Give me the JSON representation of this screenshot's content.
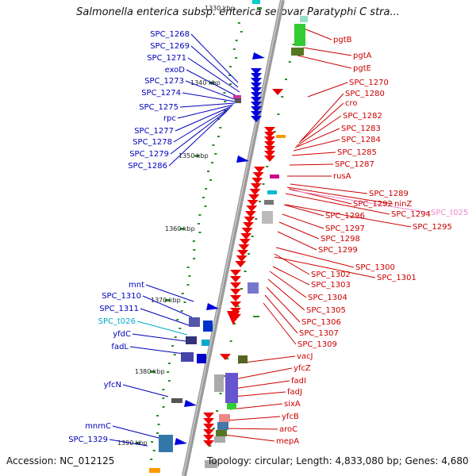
{
  "title": "Salmonella enterica subsp. enterica serovar Paratyphi C stra...",
  "footer": {
    "accession": "Accession: NC_012125",
    "topology": "Topology: circular; Length: 4,833,080 bp; Genes: 4,680"
  },
  "ticks": [
    "1330 kbp",
    "1340 kbp",
    "1350 kbp",
    "1360 kbp",
    "1370 kbp",
    "1380 kbp",
    "1390 kbp"
  ],
  "colors": {
    "forward": "#cc0000",
    "reverse": "#0000bb",
    "rna": "#00aacc",
    "pseudo": "#ee88cc",
    "backbone": "#888888"
  },
  "left_labels": [
    {
      "text": "SPC_1268",
      "kind": "reverse"
    },
    {
      "text": "SPC_1269",
      "kind": "reverse"
    },
    {
      "text": "SPC_1271",
      "kind": "reverse"
    },
    {
      "text": "exoD",
      "kind": "reverse"
    },
    {
      "text": "SPC_1273",
      "kind": "reverse"
    },
    {
      "text": "SPC_1274",
      "kind": "reverse"
    },
    {
      "text": "SPC_1275",
      "kind": "reverse"
    },
    {
      "text": "rpc",
      "kind": "reverse"
    },
    {
      "text": "SPC_1277",
      "kind": "reverse"
    },
    {
      "text": "SPC_1278",
      "kind": "reverse"
    },
    {
      "text": "SPC_1279",
      "kind": "reverse"
    },
    {
      "text": "SPC_1286",
      "kind": "reverse"
    },
    {
      "text": "mnt",
      "kind": "reverse"
    },
    {
      "text": "SPC_1310",
      "kind": "reverse"
    },
    {
      "text": "SPC_1311",
      "kind": "reverse"
    },
    {
      "text": "SPC_t026",
      "kind": "rna"
    },
    {
      "text": "yfdC",
      "kind": "reverse"
    },
    {
      "text": "fadL",
      "kind": "reverse"
    },
    {
      "text": "yfcN",
      "kind": "reverse"
    },
    {
      "text": "mnmC",
      "kind": "reverse"
    },
    {
      "text": "SPC_1329",
      "kind": "reverse"
    }
  ],
  "right_labels": [
    {
      "text": "pgtB",
      "kind": "forward"
    },
    {
      "text": "pgtA",
      "kind": "forward"
    },
    {
      "text": "pgtE",
      "kind": "forward"
    },
    {
      "text": "SPC_1270",
      "kind": "forward"
    },
    {
      "text": "SPC_1280",
      "kind": "forward"
    },
    {
      "text": "cro",
      "kind": "forward"
    },
    {
      "text": "SPC_1282",
      "kind": "forward"
    },
    {
      "text": "SPC_1283",
      "kind": "forward"
    },
    {
      "text": "SPC_1284",
      "kind": "forward"
    },
    {
      "text": "SPC_1285",
      "kind": "forward"
    },
    {
      "text": "SPC_1287",
      "kind": "forward"
    },
    {
      "text": "rusA",
      "kind": "forward"
    },
    {
      "text": "SPC_1289",
      "kind": "forward"
    },
    {
      "text": "SPC_1292",
      "kind": "forward"
    },
    {
      "text": "ninZ",
      "kind": "forward"
    },
    {
      "text": "SPC_1294",
      "kind": "forward"
    },
    {
      "text": "SPC_t025",
      "kind": "pseudo"
    },
    {
      "text": "SPC_1296",
      "kind": "forward"
    },
    {
      "text": "SPC_1295",
      "kind": "forward"
    },
    {
      "text": "SPC_1297",
      "kind": "forward"
    },
    {
      "text": "SPC_1298",
      "kind": "forward"
    },
    {
      "text": "SPC_1299",
      "kind": "forward"
    },
    {
      "text": "SPC_1300",
      "kind": "forward"
    },
    {
      "text": "SPC_1302",
      "kind": "forward"
    },
    {
      "text": "SPC_1301",
      "kind": "forward"
    },
    {
      "text": "SPC_1303",
      "kind": "forward"
    },
    {
      "text": "SPC_1304",
      "kind": "forward"
    },
    {
      "text": "SPC_1305",
      "kind": "forward"
    },
    {
      "text": "SPC_1306",
      "kind": "forward"
    },
    {
      "text": "SPC_1307",
      "kind": "forward"
    },
    {
      "text": "SPC_1309",
      "kind": "forward"
    },
    {
      "text": "vacJ",
      "kind": "forward"
    },
    {
      "text": "yfcZ",
      "kind": "forward"
    },
    {
      "text": "fadI",
      "kind": "forward"
    },
    {
      "text": "fadJ",
      "kind": "forward"
    },
    {
      "text": "sixA",
      "kind": "forward"
    },
    {
      "text": "yfcB",
      "kind": "forward"
    },
    {
      "text": "aroC",
      "kind": "forward"
    },
    {
      "text": "mepA",
      "kind": "forward"
    }
  ]
}
